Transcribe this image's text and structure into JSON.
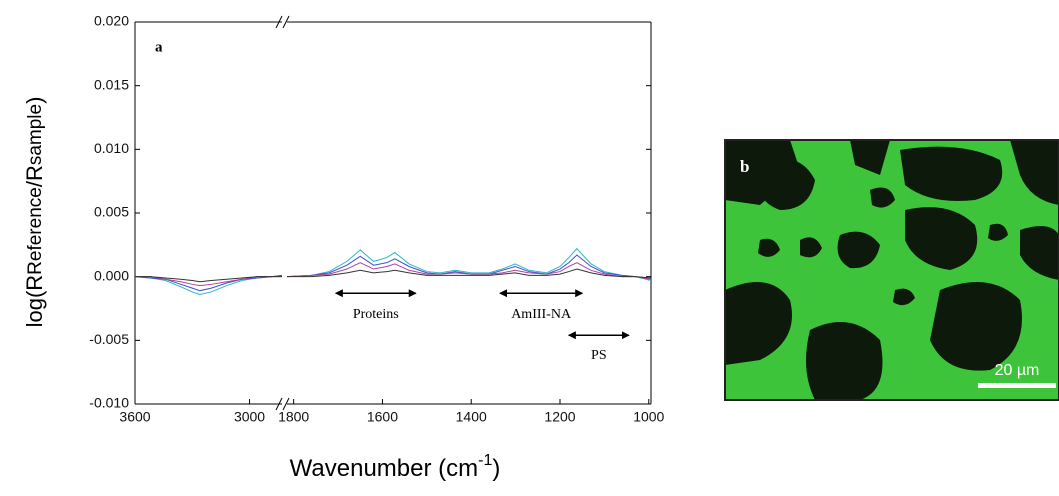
{
  "chart_data": {
    "type": "line",
    "panel_label": "a",
    "xlabel": [
      "Wavenumber (cm",
      "-1",
      ")"
    ],
    "ylabel": [
      "log(R",
      "Reference",
      "/R",
      "sample",
      ")"
    ],
    "ylim": [
      -0.01,
      0.02
    ],
    "yticks": [
      {
        "value": 0.02,
        "label": "0.020"
      },
      {
        "value": 0.015,
        "label": "0.015"
      },
      {
        "value": 0.01,
        "label": "0.010"
      },
      {
        "value": 0.005,
        "label": "0.005"
      },
      {
        "value": 0,
        "label": "0.000"
      },
      {
        "value": -0.005,
        "label": "-0.005"
      },
      {
        "value": -0.01,
        "label": "-0.010"
      }
    ],
    "segments": [
      {
        "xlim": [
          3600,
          2830
        ],
        "xticks": [
          3600,
          3000
        ],
        "x": [
          3600,
          3520,
          3440,
          3360,
          3300,
          3260,
          3200,
          3120,
          3040,
          2960,
          2880,
          2830
        ],
        "series": [
          {
            "color": "#2bb5c8",
            "values": [
              0,
              -0.0001,
              -0.0003,
              -0.0008,
              -0.0012,
              -0.0014,
              -0.0012,
              -0.0007,
              -0.0003,
              -0.0001,
              0,
              0.0001
            ]
          },
          {
            "color": "#3a4fd0",
            "values": [
              0,
              -0.0001,
              -0.0002,
              -0.0006,
              -0.0009,
              -0.0011,
              -0.0009,
              -0.0005,
              -0.0002,
              -0.0001,
              0,
              0.0001
            ]
          },
          {
            "color": "#b0409a",
            "values": [
              0,
              0,
              -0.0002,
              -0.0004,
              -0.0006,
              -0.0007,
              -0.0006,
              -0.0004,
              -0.0002,
              0,
              0,
              0
            ]
          },
          {
            "color": "#333333",
            "values": [
              0,
              0,
              -0.0001,
              -0.0002,
              -0.0003,
              -0.0004,
              -0.0003,
              -0.0002,
              -0.0001,
              0,
              0,
              0
            ]
          }
        ]
      },
      {
        "xlim": [
          1815,
          995
        ],
        "xticks": [
          1800,
          1600,
          1400,
          1200,
          1000
        ],
        "x": [
          1815,
          1760,
          1720,
          1680,
          1650,
          1620,
          1590,
          1572,
          1540,
          1500,
          1470,
          1436,
          1400,
          1360,
          1330,
          1301,
          1270,
          1230,
          1200,
          1180,
          1162,
          1130,
          1100,
          1060,
          1030,
          995
        ],
        "series": [
          {
            "color": "#2bb5c8",
            "values": [
              0,
              0.0001,
              0.0004,
              0.0012,
              0.0021,
              0.0012,
              0.0015,
              0.0019,
              0.001,
              0.0004,
              0.0003,
              0.0005,
              0.0003,
              0.0003,
              0.0006,
              0.001,
              0.0005,
              0.0003,
              0.0008,
              0.0015,
              0.0022,
              0.001,
              0.0004,
              0.0001,
              0,
              -0.0003
            ]
          },
          {
            "color": "#3a4fd0",
            "values": [
              0,
              0.0001,
              0.0003,
              0.0009,
              0.0016,
              0.0009,
              0.0011,
              0.0014,
              0.0008,
              0.0003,
              0.0002,
              0.0004,
              0.0002,
              0.0002,
              0.0005,
              0.0008,
              0.0004,
              0.0002,
              0.0006,
              0.0011,
              0.0017,
              0.0008,
              0.0003,
              0.0001,
              0,
              -0.0002
            ]
          },
          {
            "color": "#b0409a",
            "values": [
              0,
              0.0001,
              0.0002,
              0.0006,
              0.0011,
              0.0006,
              0.0008,
              0.001,
              0.0005,
              0.0002,
              0.0002,
              0.0003,
              0.0002,
              0.0002,
              0.0003,
              0.0005,
              0.0003,
              0.0002,
              0.0004,
              0.0008,
              0.0011,
              0.0005,
              0.0002,
              0,
              0,
              -0.0002
            ]
          },
          {
            "color": "#333333",
            "values": [
              0,
              0,
              0.0001,
              0.0003,
              0.0005,
              0.0003,
              0.0004,
              0.0005,
              0.0003,
              0.0001,
              0.0001,
              0.0001,
              0.0001,
              0.0001,
              0.0002,
              0.0003,
              0.0001,
              0.0001,
              0.0002,
              0.0004,
              0.0006,
              0.0003,
              0.0001,
              0,
              0,
              -0.0001
            ]
          }
        ]
      }
    ],
    "annotations": [
      {
        "text": "Proteins",
        "x": [
          1705,
          1525
        ],
        "y": -0.0013,
        "text_y": -0.003
      },
      {
        "text": "AmIII-NA",
        "x": [
          1335,
          1150
        ],
        "y": -0.0013,
        "text_y": -0.003
      },
      {
        "text": "PS",
        "x": [
          1180,
          1045
        ],
        "y": -0.0046,
        "text_y": -0.0062
      }
    ]
  },
  "panel_b": {
    "label": "b",
    "scale_bar": "20 µm"
  }
}
